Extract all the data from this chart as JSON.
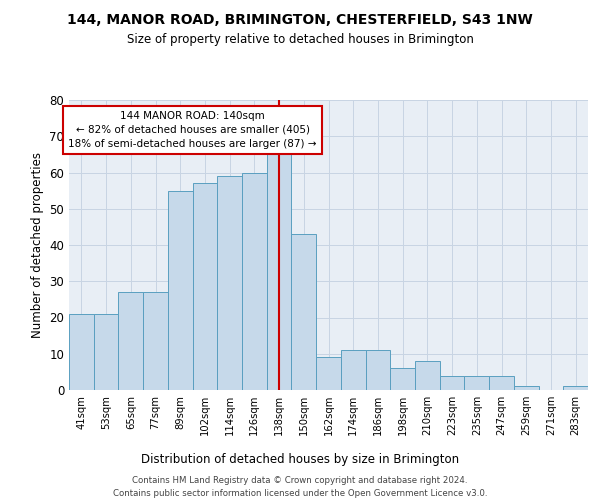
{
  "title": "144, MANOR ROAD, BRIMINGTON, CHESTERFIELD, S43 1NW",
  "subtitle": "Size of property relative to detached houses in Brimington",
  "xlabel": "Distribution of detached houses by size in Brimington",
  "ylabel": "Number of detached properties",
  "categories": [
    "41sqm",
    "53sqm",
    "65sqm",
    "77sqm",
    "89sqm",
    "102sqm",
    "114sqm",
    "126sqm",
    "138sqm",
    "150sqm",
    "162sqm",
    "174sqm",
    "186sqm",
    "198sqm",
    "210sqm",
    "223sqm",
    "235sqm",
    "247sqm",
    "259sqm",
    "271sqm",
    "283sqm"
  ],
  "values": [
    21,
    21,
    27,
    27,
    55,
    57,
    59,
    60,
    65,
    43,
    9,
    11,
    11,
    6,
    8,
    4,
    4,
    4,
    1,
    0,
    1
  ],
  "bar_color": "#c6d9ea",
  "bar_edge_color": "#5a9fc0",
  "marker_index": 8,
  "marker_line_color": "#cc0000",
  "annotation_line1": "144 MANOR ROAD: 140sqm",
  "annotation_line2": "← 82% of detached houses are smaller (405)",
  "annotation_line3": "18% of semi-detached houses are larger (87) →",
  "annotation_box_facecolor": "#ffffff",
  "annotation_box_edgecolor": "#cc0000",
  "ylim_max": 80,
  "yticks": [
    0,
    10,
    20,
    30,
    40,
    50,
    60,
    70,
    80
  ],
  "grid_color": "#c8d4e3",
  "plot_bg_color": "#e8eef5",
  "footer_line1": "Contains HM Land Registry data © Crown copyright and database right 2024.",
  "footer_line2": "Contains public sector information licensed under the Open Government Licence v3.0."
}
